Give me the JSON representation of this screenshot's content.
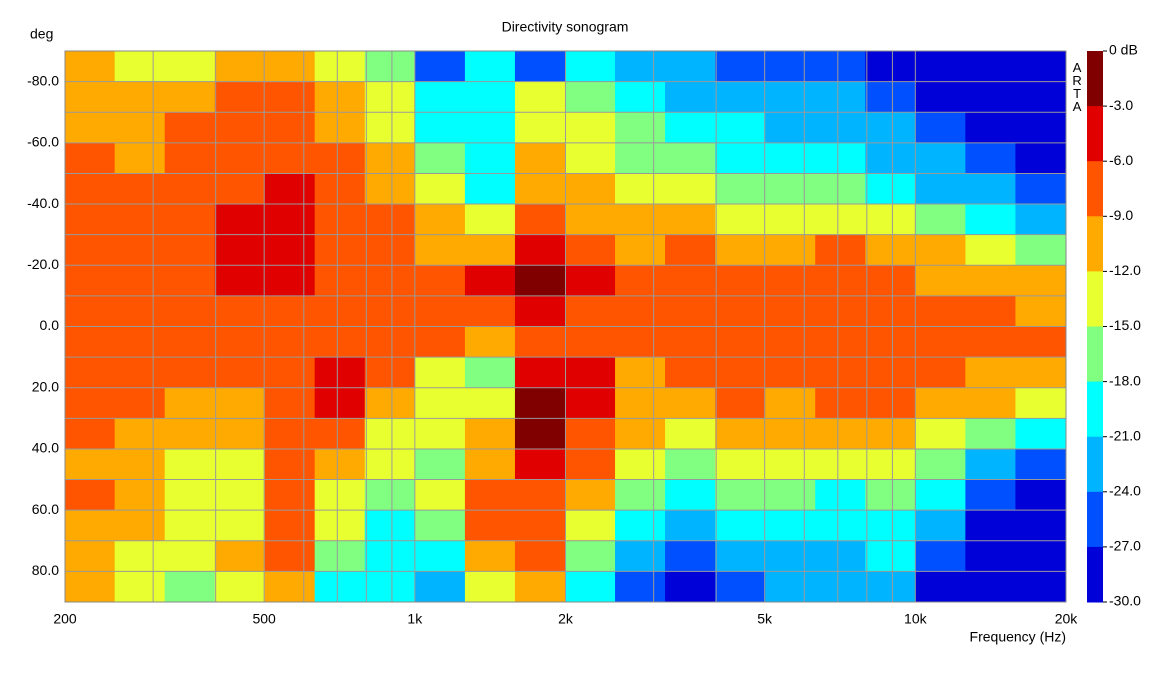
{
  "chart_data": {
    "type": "heatmap",
    "title": "Directivity sonogram",
    "ylabel": "deg",
    "xlabel": "Frequency (Hz)",
    "watermark": "ARTA",
    "xscale": "log",
    "xlim": [
      200,
      20000
    ],
    "xticks": [
      200,
      500,
      {
        "value": 1000,
        "label": "1k"
      },
      {
        "value": 2000,
        "label": "2k"
      },
      {
        "value": 5000,
        "label": "5k"
      },
      {
        "value": 10000,
        "label": "10k"
      },
      {
        "value": 20000,
        "label": "20k"
      }
    ],
    "xminor": [
      300,
      400,
      600,
      700,
      800,
      900,
      3000,
      4000,
      6000,
      7000,
      8000,
      9000
    ],
    "ylim": [
      -90,
      90
    ],
    "yticks": [
      {
        "value": -80,
        "label": "-80.0"
      },
      {
        "value": -60,
        "label": "-60.0"
      },
      {
        "value": -40,
        "label": "-40.0"
      },
      {
        "value": -20,
        "label": "-20.0"
      },
      {
        "value": 0,
        "label": "0.0"
      },
      {
        "value": 20,
        "label": "20.0"
      },
      {
        "value": 40,
        "label": "40.0"
      },
      {
        "value": 60,
        "label": "60.0"
      },
      {
        "value": 80,
        "label": "80.0"
      }
    ],
    "yminor": [
      -70,
      -50,
      -30,
      -10,
      10,
      30,
      50,
      70
    ],
    "grid": true,
    "colorbar_ticks": [
      {
        "value": 0,
        "label": "0 dB"
      },
      {
        "value": -3,
        "label": "-3.0"
      },
      {
        "value": -6,
        "label": "-6.0"
      },
      {
        "value": -9,
        "label": "-9.0"
      },
      {
        "value": -12,
        "label": "-12.0"
      },
      {
        "value": -15,
        "label": "-15.0"
      },
      {
        "value": -18,
        "label": "-18.0"
      },
      {
        "value": -21,
        "label": "-21.0"
      },
      {
        "value": -24,
        "label": "-24.0"
      },
      {
        "value": -27,
        "label": "-27.0"
      },
      {
        "value": -30,
        "label": "-30.0"
      }
    ],
    "colors": [
      "#800000",
      "#e00000",
      "#ff5500",
      "#ffaa00",
      "#e8ff30",
      "#80ff80",
      "#00ffff",
      "#00b4ff",
      "#0050ff",
      "#0000d8"
    ],
    "x": [
      224,
      282,
      355,
      447,
      562,
      708,
      891,
      1122,
      1413,
      1778,
      2239,
      2818,
      3548,
      4467,
      5623,
      7079,
      8913,
      11220,
      14125,
      17783
    ],
    "y": [
      -85,
      -75,
      -65,
      -55,
      -45,
      -35,
      -25,
      -15,
      -5,
      5,
      15,
      25,
      35,
      45,
      55,
      65,
      75,
      85
    ],
    "z": [
      [
        -10.5,
        -13.5,
        -13.5,
        -10.5,
        -10.5,
        -13.5,
        -16.5,
        -25.5,
        -19.5,
        -25.5,
        -19.5,
        -22.5,
        -22.5,
        -25.5,
        -25.5,
        -25.5,
        -28.5,
        -28.5,
        -28.5,
        -28.5
      ],
      [
        -10.5,
        -10.5,
        -10.5,
        -7.5,
        -7.5,
        -10.5,
        -13.5,
        -19.5,
        -19.5,
        -13.5,
        -16.5,
        -19.5,
        -22.5,
        -22.5,
        -22.5,
        -22.5,
        -25.5,
        -28.5,
        -28.5,
        -28.5
      ],
      [
        -10.5,
        -10.5,
        -7.5,
        -7.5,
        -7.5,
        -10.5,
        -13.5,
        -19.5,
        -19.5,
        -13.5,
        -13.5,
        -16.5,
        -19.5,
        -19.5,
        -22.5,
        -22.5,
        -22.5,
        -25.5,
        -28.5,
        -28.5
      ],
      [
        -7.5,
        -10.5,
        -7.5,
        -7.5,
        -7.5,
        -7.5,
        -10.5,
        -16.5,
        -19.5,
        -10.5,
        -13.5,
        -16.5,
        -16.5,
        -19.5,
        -19.5,
        -19.5,
        -22.5,
        -22.5,
        -25.5,
        -28.5
      ],
      [
        -7.5,
        -7.5,
        -7.5,
        -7.5,
        -4.5,
        -7.5,
        -10.5,
        -13.5,
        -19.5,
        -10.5,
        -10.5,
        -13.5,
        -13.5,
        -16.5,
        -16.5,
        -16.5,
        -19.5,
        -22.5,
        -22.5,
        -25.5
      ],
      [
        -7.5,
        -7.5,
        -7.5,
        -4.5,
        -4.5,
        -7.5,
        -7.5,
        -10.5,
        -13.5,
        -7.5,
        -10.5,
        -10.5,
        -10.5,
        -13.5,
        -13.5,
        -13.5,
        -13.5,
        -16.5,
        -19.5,
        -22.5
      ],
      [
        -7.5,
        -7.5,
        -7.5,
        -4.5,
        -4.5,
        -7.5,
        -7.5,
        -10.5,
        -10.5,
        -4.5,
        -7.5,
        -10.5,
        -7.5,
        -10.5,
        -10.5,
        -7.5,
        -10.5,
        -10.5,
        -13.5,
        -16.5
      ],
      [
        -7.5,
        -7.5,
        -7.5,
        -4.5,
        -4.5,
        -7.5,
        -7.5,
        -7.5,
        -4.5,
        -1.5,
        -4.5,
        -7.5,
        -7.5,
        -7.5,
        -7.5,
        -7.5,
        -7.5,
        -10.5,
        -10.5,
        -10.5
      ],
      [
        -7.5,
        -7.5,
        -7.5,
        -7.5,
        -7.5,
        -7.5,
        -7.5,
        -7.5,
        -7.5,
        -4.5,
        -7.5,
        -7.5,
        -7.5,
        -7.5,
        -7.5,
        -7.5,
        -7.5,
        -7.5,
        -7.5,
        -10.5
      ],
      [
        -7.5,
        -7.5,
        -7.5,
        -7.5,
        -7.5,
        -7.5,
        -7.5,
        -7.5,
        -10.5,
        -7.5,
        -7.5,
        -7.5,
        -7.5,
        -7.5,
        -7.5,
        -7.5,
        -7.5,
        -7.5,
        -7.5,
        -7.5
      ],
      [
        -7.5,
        -7.5,
        -7.5,
        -7.5,
        -7.5,
        -4.5,
        -7.5,
        -13.5,
        -16.5,
        -4.5,
        -4.5,
        -10.5,
        -7.5,
        -7.5,
        -7.5,
        -7.5,
        -7.5,
        -7.5,
        -10.5,
        -10.5
      ],
      [
        -7.5,
        -7.5,
        -10.5,
        -10.5,
        -7.5,
        -4.5,
        -10.5,
        -13.5,
        -13.5,
        -1.5,
        -4.5,
        -10.5,
        -10.5,
        -7.5,
        -10.5,
        -7.5,
        -7.5,
        -10.5,
        -10.5,
        -13.5
      ],
      [
        -7.5,
        -10.5,
        -10.5,
        -10.5,
        -7.5,
        -7.5,
        -13.5,
        -13.5,
        -10.5,
        -1.5,
        -7.5,
        -10.5,
        -13.5,
        -10.5,
        -10.5,
        -10.5,
        -10.5,
        -13.5,
        -16.5,
        -19.5
      ],
      [
        -10.5,
        -10.5,
        -13.5,
        -13.5,
        -7.5,
        -10.5,
        -13.5,
        -16.5,
        -10.5,
        -4.5,
        -7.5,
        -13.5,
        -16.5,
        -13.5,
        -13.5,
        -13.5,
        -13.5,
        -16.5,
        -22.5,
        -25.5
      ],
      [
        -7.5,
        -10.5,
        -13.5,
        -13.5,
        -7.5,
        -13.5,
        -16.5,
        -13.5,
        -7.5,
        -7.5,
        -10.5,
        -16.5,
        -19.5,
        -16.5,
        -16.5,
        -19.5,
        -16.5,
        -19.5,
        -25.5,
        -28.5
      ],
      [
        -10.5,
        -10.5,
        -13.5,
        -13.5,
        -7.5,
        -13.5,
        -19.5,
        -16.5,
        -7.5,
        -7.5,
        -13.5,
        -19.5,
        -22.5,
        -19.5,
        -19.5,
        -19.5,
        -19.5,
        -22.5,
        -28.5,
        -28.5
      ],
      [
        -10.5,
        -13.5,
        -13.5,
        -10.5,
        -7.5,
        -16.5,
        -19.5,
        -19.5,
        -10.5,
        -7.5,
        -16.5,
        -22.5,
        -25.5,
        -22.5,
        -22.5,
        -22.5,
        -19.5,
        -25.5,
        -28.5,
        -28.5
      ],
      [
        -10.5,
        -13.5,
        -16.5,
        -13.5,
        -10.5,
        -19.5,
        -19.5,
        -22.5,
        -13.5,
        -10.5,
        -19.5,
        -25.5,
        -28.5,
        -25.5,
        -22.5,
        -22.5,
        -22.5,
        -28.5,
        -28.5,
        -28.5
      ]
    ]
  }
}
